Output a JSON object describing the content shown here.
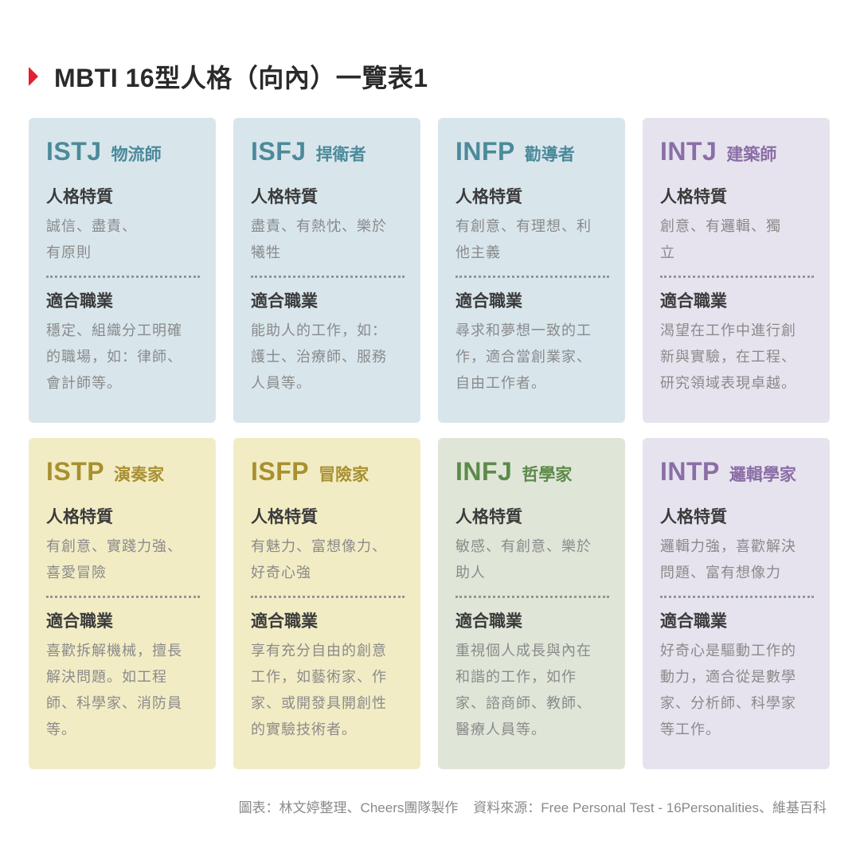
{
  "header": {
    "title": "MBTI 16型人格（向內）一覽表1",
    "accent_color": "#e3202f"
  },
  "labels": {
    "traits": "人格特質",
    "careers": "適合職業"
  },
  "cards": [
    {
      "code": "ISTJ",
      "name": "物流師",
      "bg": "#d8e6ec",
      "accent": "#4c8a9a",
      "traits_lines": [
        "誠信、盡責、",
        "有原則"
      ],
      "careers_lines": [
        "穩定、組織分工明確",
        "的職場，如：律師、",
        "會計師等。"
      ]
    },
    {
      "code": "ISFJ",
      "name": "捍衛者",
      "bg": "#d8e6ec",
      "accent": "#4c8a9a",
      "traits_lines": [
        "盡責、有熱忱、樂於",
        "犧牲"
      ],
      "careers_lines": [
        "能助人的工作，如：",
        "護士、治療師、服務",
        "人員等。"
      ]
    },
    {
      "code": "INFP",
      "name": "勸導者",
      "bg": "#d8e6ec",
      "accent": "#4c8a9a",
      "traits_lines": [
        "有創意、有理想、利",
        "他主義"
      ],
      "careers_lines": [
        "尋求和夢想一致的工",
        "作，適合當創業家、",
        "自由工作者。"
      ]
    },
    {
      "code": "INTJ",
      "name": "建築師",
      "bg": "#e6e3ee",
      "accent": "#8a6ea6",
      "traits_lines": [
        "創意、有邏輯、獨",
        "立"
      ],
      "careers_lines": [
        "渴望在工作中進行創",
        "新與實驗，在工程、",
        "研究領域表現卓越。"
      ]
    },
    {
      "code": "ISTP",
      "name": "演奏家",
      "bg": "#f2ecc5",
      "accent": "#a89030",
      "traits_lines": [
        "有創意、實踐力強、",
        "喜愛冒險"
      ],
      "careers_lines": [
        "喜歡拆解機械，擅長",
        "解決問題。如工程",
        "師、科學家、消防員",
        "等。"
      ]
    },
    {
      "code": "ISFP",
      "name": "冒險家",
      "bg": "#f2ecc5",
      "accent": "#a89030",
      "traits_lines": [
        "有魅力、富想像力、",
        "好奇心強"
      ],
      "careers_lines": [
        "享有充分自由的創意",
        "工作，如藝術家、作",
        "家、或開發具開創性",
        "的實驗技術者。"
      ]
    },
    {
      "code": "INFJ",
      "name": "哲學家",
      "bg": "#dfe6d8",
      "accent": "#5d8a4a",
      "traits_lines": [
        "敏感、有創意、樂於",
        "助人"
      ],
      "careers_lines": [
        "重視個人成長與內在",
        "和諧的工作，如作",
        "家、諮商師、教師、",
        "醫療人員等。"
      ]
    },
    {
      "code": "INTP",
      "name": "邏輯學家",
      "bg": "#e6e3ee",
      "accent": "#8a6ea6",
      "traits_lines": [
        "邏輯力強，喜歡解決",
        "問題、富有想像力"
      ],
      "careers_lines": [
        "好奇心是驅動工作的",
        "動力，適合從是數學",
        "家、分析師、科學家",
        "等工作。"
      ]
    }
  ],
  "footer": {
    "credit": "圖表：林文婷整理、Cheers團隊製作",
    "source": "資料來源：Free Personal Test - 16Personalities、維基百科"
  }
}
